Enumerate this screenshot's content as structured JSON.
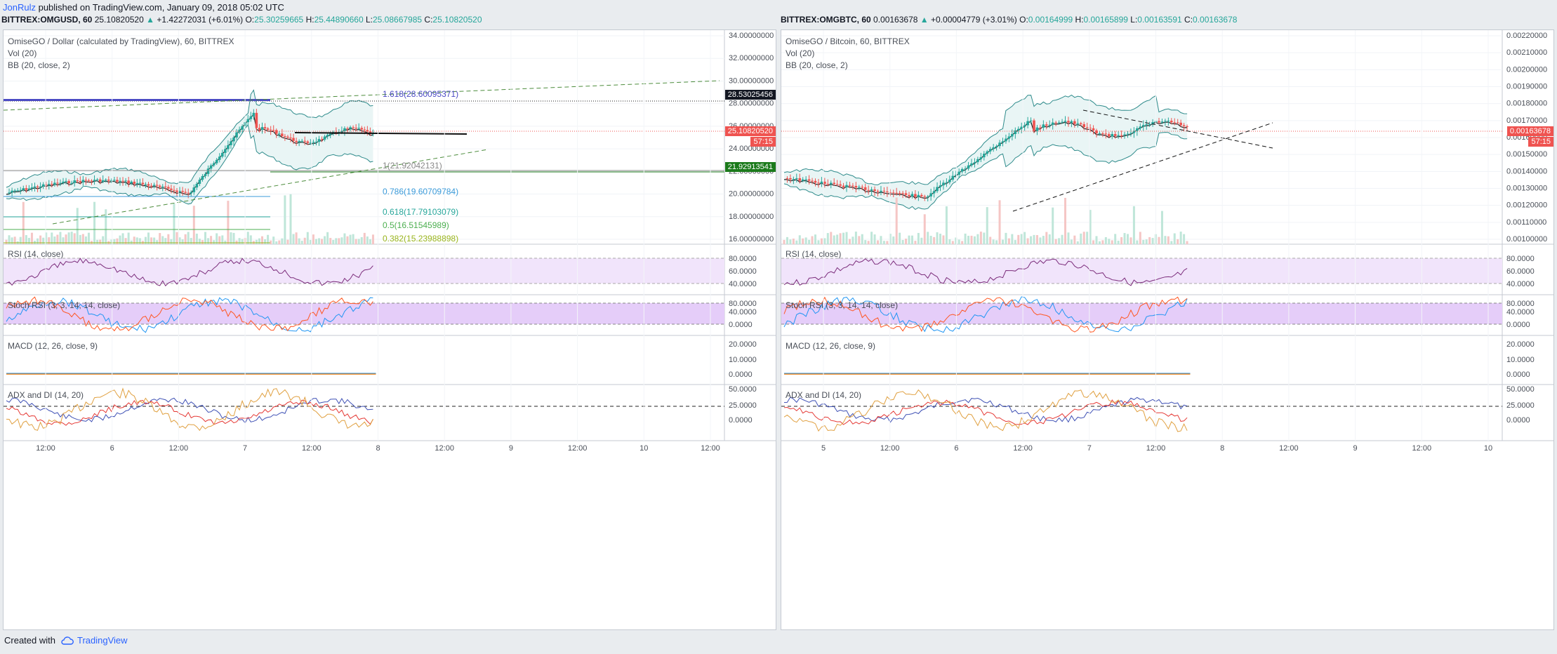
{
  "header": {
    "author": "JonRulz",
    "published": "published on TradingView.com, January 09, 2018 05:02 UTC"
  },
  "footer": {
    "created_with": "Created with",
    "brand": "TradingView"
  },
  "colors": {
    "up": "#26a69a",
    "down": "#ef5350",
    "bb": "#2e8b8b",
    "bb_fill": "#e9f5f5",
    "rsi": "#7b2c7b",
    "rsi_band": "#f1e4fb",
    "stoch_band": "#e5cdf9",
    "price_line": "#ef5350",
    "fib_top": "#4b4bc4",
    "fib_786": "#3a9ad9",
    "fib_618": "#26a69a",
    "fib_5": "#4caf50",
    "fib_382": "#9ab51d"
  },
  "left": {
    "symbol": "BITTREX:OMGUSD, 60",
    "last": "25.10820520",
    "change": "+1.42272031 (+6.01%)",
    "ohlc": {
      "o_label": "O:",
      "o": "25.30259665",
      "h_label": "H:",
      "h": "25.44890660",
      "l_label": "L:",
      "l": "25.08667985",
      "c_label": "C:",
      "c": "25.10820520"
    },
    "title": "OmiseGO / Dollar (calculated by TradingView), 60, BITTREX",
    "vol": "Vol (20)",
    "bb": "BB (20, close, 2)",
    "price_axis": [
      "34.00000000",
      "32.00000000",
      "30.00000000",
      "28.00000000",
      "26.00000000",
      "24.00000000",
      "22.00000000",
      "20.00000000",
      "18.00000000",
      "16.00000000"
    ],
    "tags": {
      "fib_high": "28.53025456",
      "last": "25.10820520",
      "countdown": "57:15",
      "support": "21.92913541"
    },
    "fib_labels": {
      "l1618": "1.618(28.60095371)",
      "l1": "1(21.92042131)",
      "l786": "0.786(19.60709784)",
      "l618": "0.618(17.79103079)",
      "l5": "0.5(16.51545989)",
      "l382": "0.382(15.23988898)"
    },
    "time_axis": [
      "12:00",
      "6",
      "12:00",
      "7",
      "12:00",
      "8",
      "12:00",
      "9",
      "12:00",
      "10",
      "12:00"
    ]
  },
  "right": {
    "symbol": "BITTREX:OMGBTC, 60",
    "last": "0.00163678",
    "change": "+0.00004779 (+3.01%)",
    "ohlc": {
      "o_label": "O:",
      "o": "0.00164999",
      "h_label": "H:",
      "h": "0.00165899",
      "l_label": "L:",
      "l": "0.00163591",
      "c_label": "C:",
      "c": "0.00163678"
    },
    "title": "OmiseGO / Bitcoin, 60, BITTREX",
    "vol": "Vol (20)",
    "bb": "BB (20, close, 2)",
    "price_axis": [
      "0.00220000",
      "0.00210000",
      "0.00200000",
      "0.00190000",
      "0.00180000",
      "0.00170000",
      "0.00160000",
      "0.00150000",
      "0.00140000",
      "0.00130000",
      "0.00120000",
      "0.00110000",
      "0.00100000"
    ],
    "tags": {
      "last": "0.00163678",
      "countdown": "57:15",
      "partial": "0.001"
    },
    "time_axis": [
      "5",
      "12:00",
      "6",
      "12:00",
      "7",
      "12:00",
      "8",
      "12:00",
      "9",
      "12:00",
      "10"
    ]
  },
  "indicators": {
    "rsi": {
      "label": "RSI (14, close)",
      "axis": [
        "80.0000",
        "60.0000",
        "40.0000"
      ]
    },
    "stoch": {
      "label": "Stoch RSI (3, 3, 14, 14, close)",
      "axis": [
        "80.0000",
        "40.0000",
        "0.0000"
      ]
    },
    "macd": {
      "label": "MACD (12, 26, close, 9)",
      "axis": [
        "20.0000",
        "10.0000",
        "0.0000"
      ]
    },
    "adx": {
      "label": "ADX and DI (14, 20)",
      "axis": [
        "50.0000",
        "25.0000",
        "0.0000"
      ]
    }
  }
}
